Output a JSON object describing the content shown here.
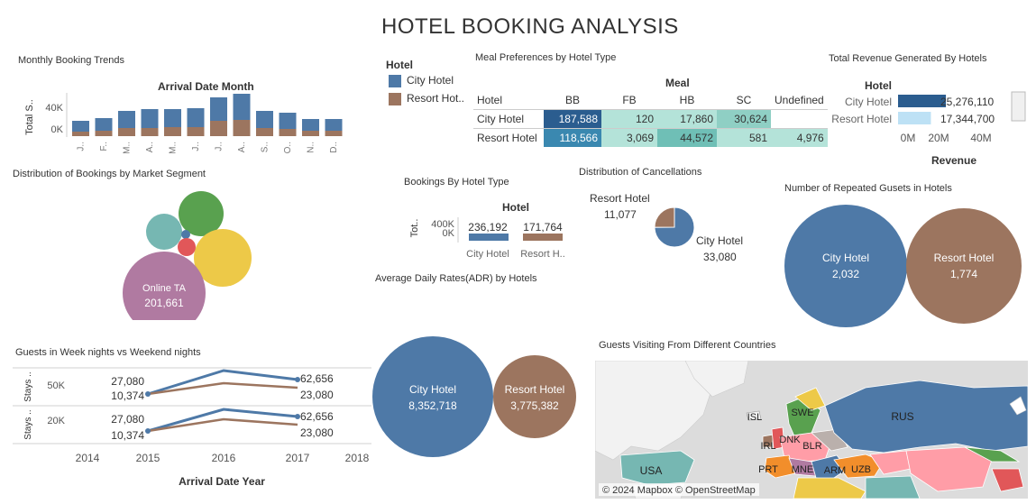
{
  "title": "HOTEL BOOKING ANALYSIS",
  "colors": {
    "city": "#4e79a7",
    "resort": "#9c755f",
    "light_blue": "#bde1f5",
    "dark_blue": "#2b5d8f",
    "teal_light": "#a9ddd3"
  },
  "monthly": {
    "title": "Monthly Booking Trends",
    "header": "Arrival Date Month",
    "y_label": "Total S..",
    "y_ticks": [
      "40K",
      "0K"
    ],
    "months": [
      "J..",
      "F..",
      "M..",
      "A..",
      "M..",
      "J..",
      "J..",
      "A..",
      "S..",
      "O..",
      "N..",
      "D.."
    ]
  },
  "market": {
    "title": "Distribution of Bookings by Market Segment",
    "largest_label": "Online TA",
    "largest_value": "201,661"
  },
  "weeknights": {
    "title": "Guests in Week nights vs Weekend nights",
    "row_labels": [
      "Stays ..",
      "Stays .."
    ],
    "row2_label": "Stays ..",
    "y_ticks": [
      "50K",
      "20K"
    ],
    "x_ticks": [
      "2014",
      "2015",
      "2016",
      "2017",
      "2018"
    ],
    "x_label": "Arrival Date Year",
    "row1": {
      "top_left": "27,080",
      "bottom_left": "10,374",
      "top_right": "62,656",
      "bottom_right": "23,080"
    },
    "row2": {
      "top_left": "27,080",
      "bottom_left": "10,374",
      "top_right": "62,656",
      "bottom_right": "23,080"
    }
  },
  "legend": {
    "title": "Hotel",
    "items": [
      "City Hotel",
      "Resort Hot.."
    ]
  },
  "meal": {
    "title": "Meal Preferences by Hotel Type",
    "header": "Meal",
    "columns": [
      "Hotel",
      "BB",
      "FB",
      "HB",
      "SC",
      "Undefined"
    ],
    "rows": [
      {
        "hotel": "City Hotel",
        "values": [
          "187,588",
          "120",
          "17,860",
          "30,624",
          ""
        ]
      },
      {
        "hotel": "Resort Hotel",
        "values": [
          "118,566",
          "3,069",
          "44,572",
          "581",
          "4,976"
        ]
      }
    ]
  },
  "revenue": {
    "title": "Total Revenue Generated By Hotels",
    "header": "Hotel",
    "rows": [
      {
        "hotel": "City Hotel",
        "value": "25,276,110",
        "number": 25276110
      },
      {
        "hotel": "Resort Hotel",
        "value": "17,344,700",
        "number": 17344700
      }
    ],
    "x_ticks": [
      "0M",
      "20M",
      "40M"
    ],
    "x_label": "Revenue"
  },
  "bookings": {
    "title": "Bookings By Hotel Type",
    "header": "Hotel",
    "y_label": "Tot..",
    "y_ticks": [
      "400K",
      "0K"
    ],
    "bars": [
      {
        "label": "City Hotel",
        "value": "236,192",
        "number": 236192
      },
      {
        "label": "Resort H..",
        "value": "171,764",
        "number": 171764
      }
    ]
  },
  "cancel": {
    "title": "Distribution of Cancellations",
    "resort_label": "Resort Hotel",
    "resort_value": "11,077",
    "city_label": "City Hotel",
    "city_value": "33,080",
    "slices": [
      {
        "name": "City Hotel",
        "value": 33080
      },
      {
        "name": "Resort Hotel",
        "value": 11077
      }
    ]
  },
  "repeated": {
    "title": "Number of Repeated Gusets in Hotels",
    "city_label": "City Hotel",
    "city_value": "2,032",
    "resort_label": "Resort Hotel",
    "resort_value": "1,774"
  },
  "adr": {
    "title": "Average Daily Rates(ADR) by Hotels",
    "city_label": "City Hotel",
    "city_value": "8,352,718",
    "resort_label": "Resort Hotel",
    "resort_value": "3,775,382"
  },
  "countries": {
    "title": "Guests Visiting From Different Countries",
    "labels": [
      "RUS",
      "USA",
      "ISL",
      "SWE",
      "IRL",
      "DNK",
      "BLR",
      "PRT",
      "MNE",
      "ARM",
      "UZB"
    ],
    "attribution": "© 2024 Mapbox © OpenStreetMap"
  }
}
